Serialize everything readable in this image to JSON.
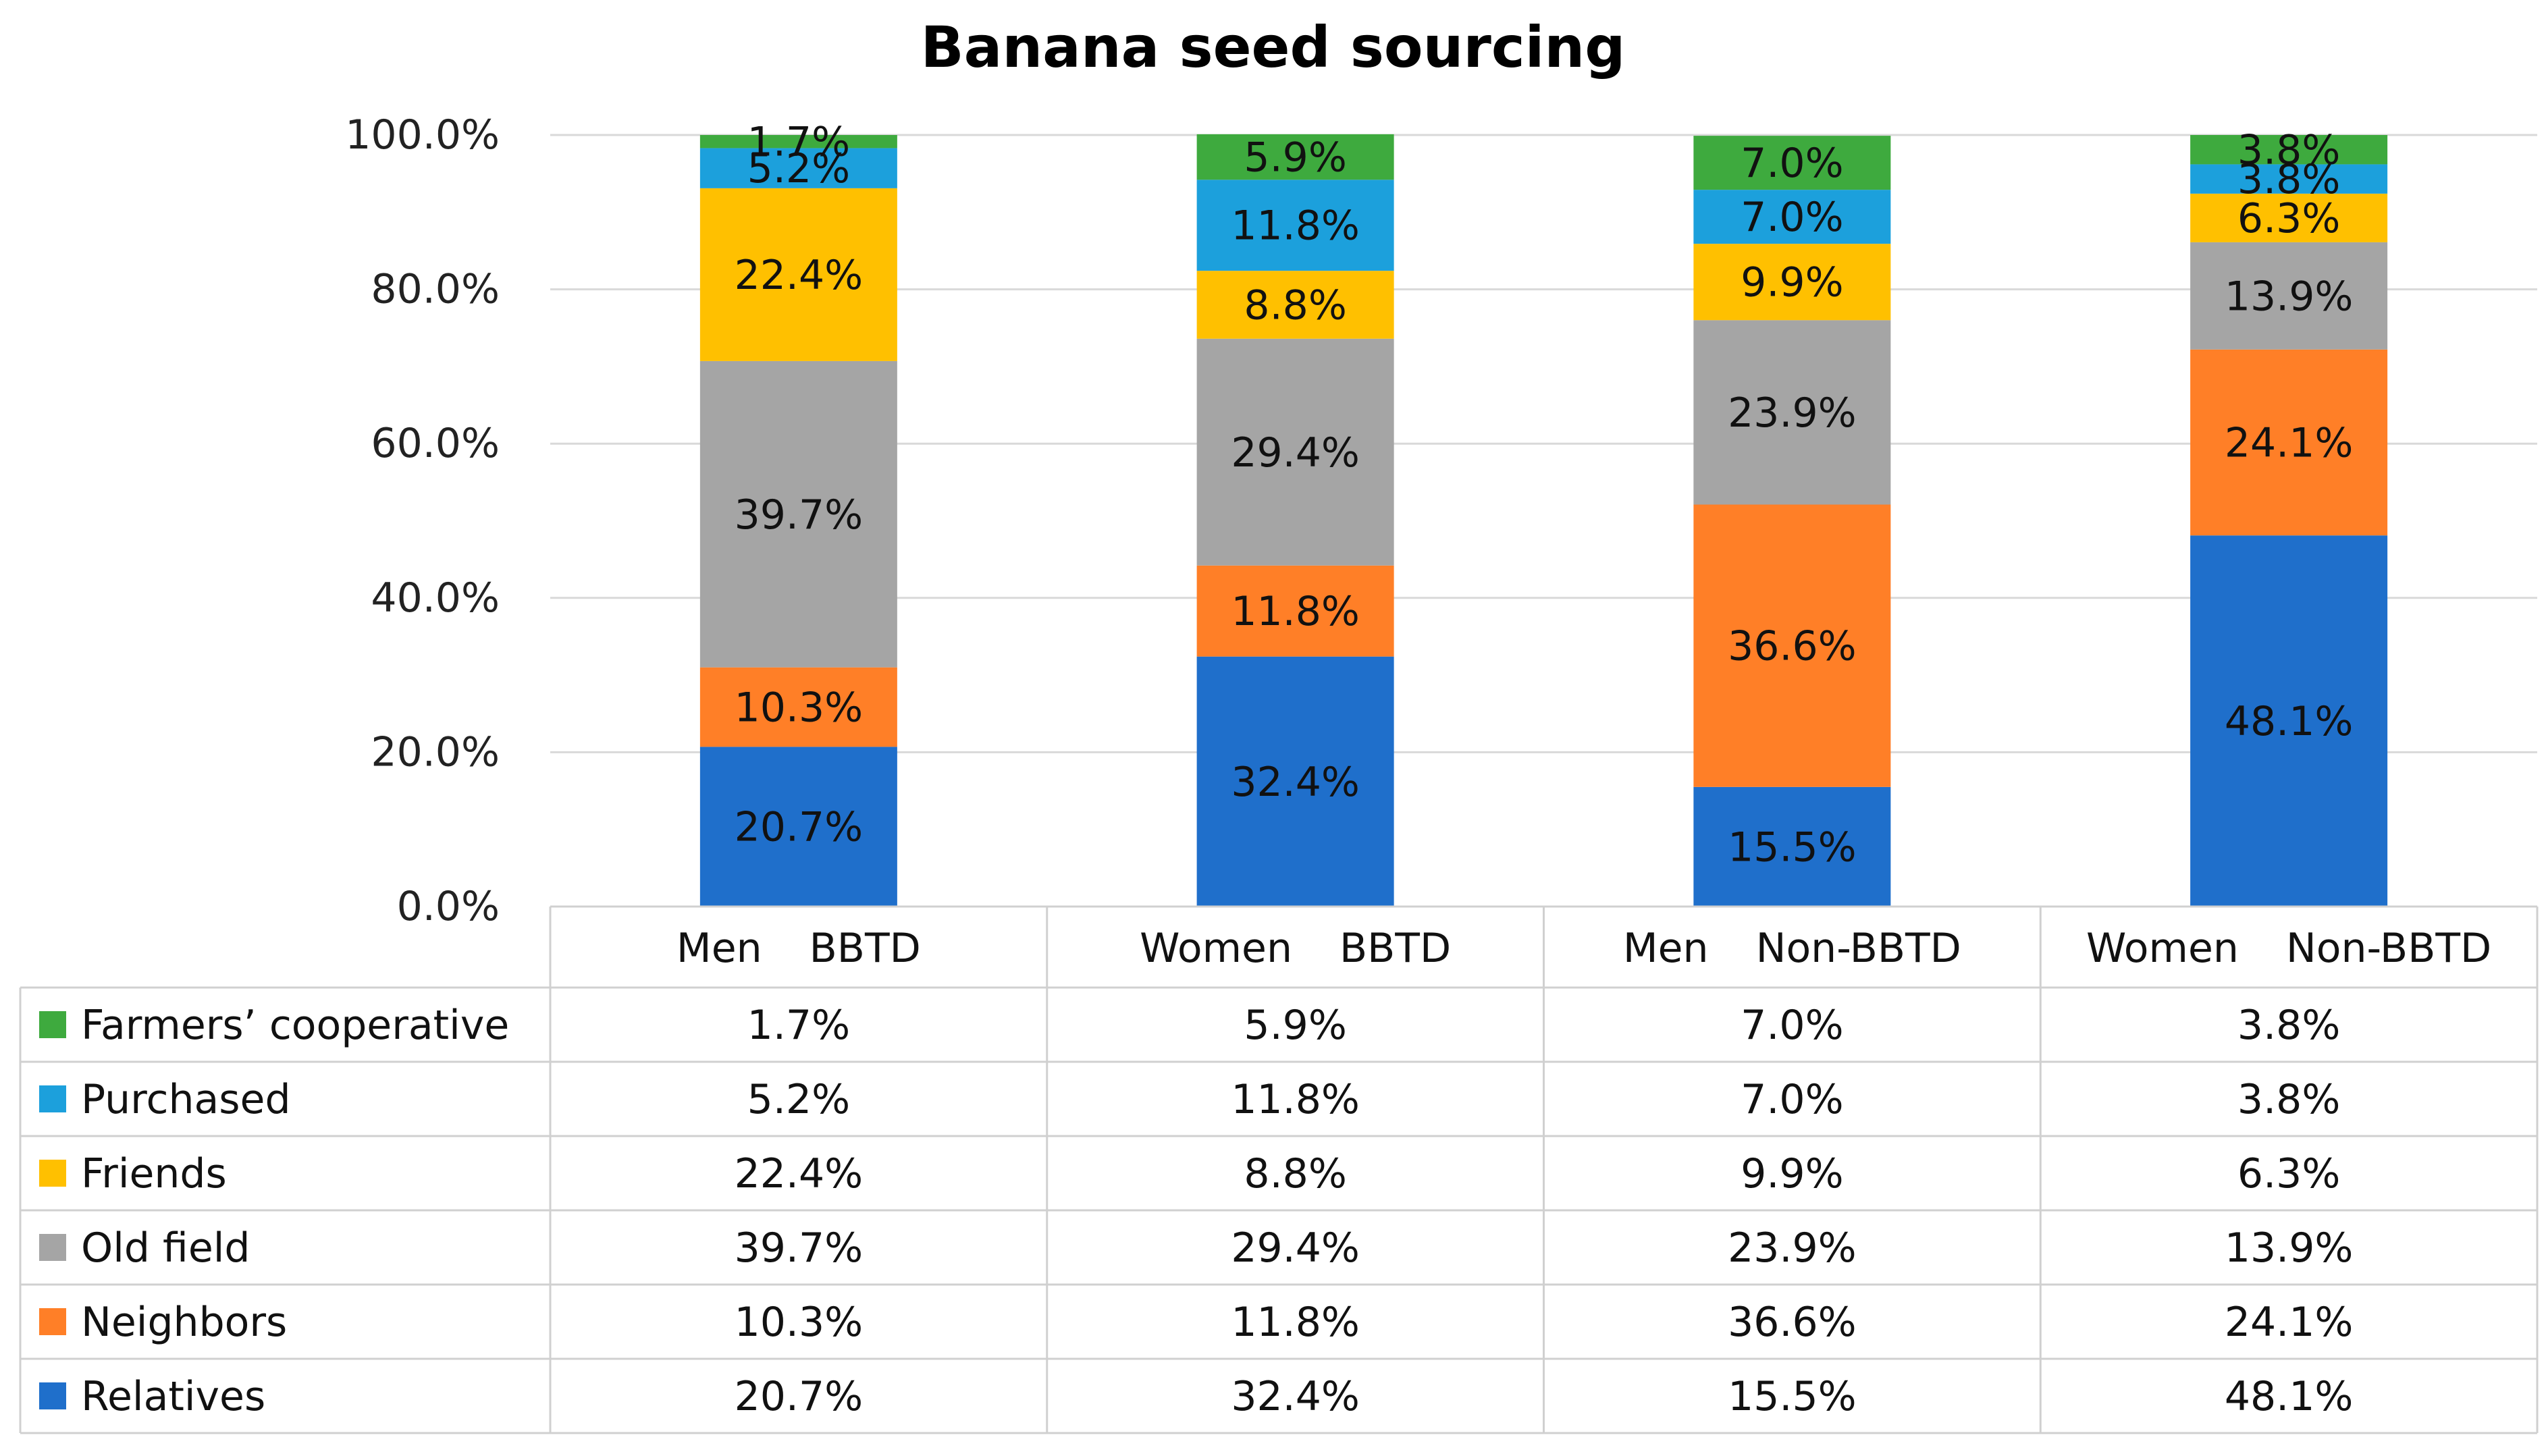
{
  "chart_data": {
    "type": "bar",
    "stacked": true,
    "title": "Banana seed sourcing",
    "categories": [
      [
        "Men",
        "BBTD"
      ],
      [
        "Women",
        "BBTD"
      ],
      [
        "Men",
        "Non-BBTD"
      ],
      [
        "Women",
        "Non-BBTD"
      ]
    ],
    "ylim": [
      0,
      100
    ],
    "yticks": [
      "0.0%",
      "20.0%",
      "40.0%",
      "60.0%",
      "80.0%",
      "100.0%"
    ],
    "grid": true,
    "legend": "data-table",
    "series": [
      {
        "name": "Relatives",
        "color": "#1F6FCB",
        "values": [
          20.7,
          32.4,
          15.5,
          48.1
        ],
        "labels": [
          "20.7%",
          "32.4%",
          "15.5%",
          "48.1%"
        ]
      },
      {
        "name": "Neighbors",
        "color": "#FF7F27",
        "values": [
          10.3,
          11.8,
          36.6,
          24.1
        ],
        "labels": [
          "10.3%",
          "11.8%",
          "36.6%",
          "24.1%"
        ]
      },
      {
        "name": "Old field",
        "color": "#A5A5A5",
        "values": [
          39.7,
          29.4,
          23.9,
          13.9
        ],
        "labels": [
          "39.7%",
          "29.4%",
          "23.9%",
          "13.9%"
        ]
      },
      {
        "name": "Friends",
        "color": "#FFC000",
        "values": [
          22.4,
          8.8,
          9.9,
          6.3
        ],
        "labels": [
          "22.4%",
          "8.8%",
          "9.9%",
          "6.3%"
        ]
      },
      {
        "name": "Purchased",
        "color": "#1CA0DC",
        "values": [
          5.2,
          11.8,
          7.0,
          3.8
        ],
        "labels": [
          "5.2%",
          "11.8%",
          "7.0%",
          "3.8%"
        ]
      },
      {
        "name": "Farmers’ cooperative",
        "color": "#3EAA3E",
        "values": [
          1.7,
          5.9,
          7.0,
          3.8
        ],
        "labels": [
          "1.7%",
          "5.9%",
          "7.0%",
          "3.8%"
        ]
      }
    ]
  }
}
